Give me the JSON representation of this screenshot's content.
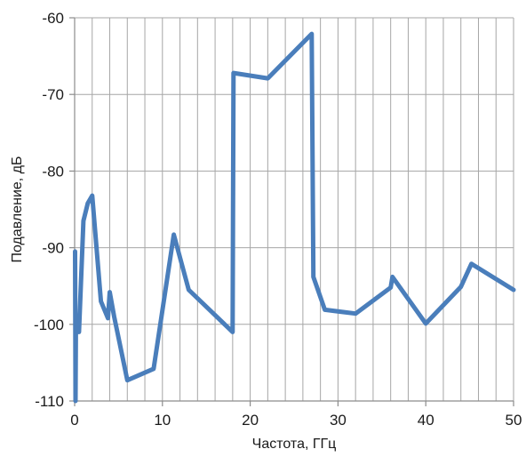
{
  "chart_data": {
    "type": "line",
    "title": "",
    "xlabel": "Частота, ГГц",
    "ylabel": "Подавление, дБ",
    "xlim": [
      0,
      50
    ],
    "ylim": [
      -110,
      -60
    ],
    "xticks": [
      0,
      10,
      20,
      30,
      40,
      50
    ],
    "yticks": [
      -60,
      -70,
      -80,
      -90,
      -100,
      -110
    ],
    "x_minor_step": 2,
    "grid": true,
    "legend": "none",
    "colors": {
      "series": "#4a7ebb",
      "grid": "#a6a6a6"
    },
    "series": [
      {
        "x": [
          0.05,
          0.1,
          0.15,
          0.25,
          0.5,
          1.0,
          1.5,
          2.0,
          3.0,
          3.8,
          4.0,
          4.5,
          6.0,
          9.0,
          11.3,
          13.0,
          18.0,
          18.1,
          22.0,
          27.0,
          27.2,
          28.5,
          32.0,
          36.0,
          36.2,
          40.0,
          44.0,
          45.2,
          50.0
        ],
        "y": [
          -90.5,
          -110.0,
          -99.0,
          -101.0,
          -101.0,
          -86.5,
          -84.2,
          -83.2,
          -97.0,
          -99.2,
          -95.8,
          -99.0,
          -107.3,
          -105.8,
          -88.3,
          -95.5,
          -101.0,
          -67.2,
          -67.9,
          -62.1,
          -93.8,
          -98.1,
          -98.6,
          -95.2,
          -93.8,
          -99.9,
          -95.1,
          -92.1,
          -95.5
        ]
      }
    ]
  }
}
